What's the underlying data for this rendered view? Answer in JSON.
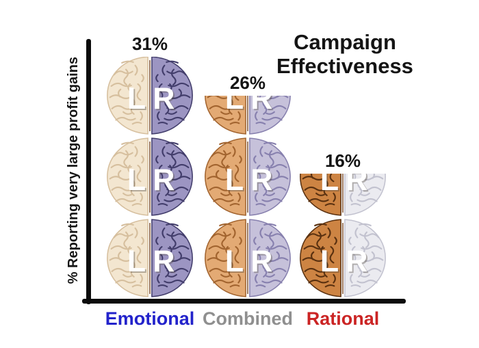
{
  "title": "Campaign Effectiveness",
  "y_axis_label": "% Reporting very large profit gains",
  "chart_data": {
    "type": "bar",
    "title": "Campaign Effectiveness",
    "ylabel": "% Reporting very large profit gains",
    "xlabel": "",
    "categories": [
      "Emotional",
      "Combined",
      "Rational"
    ],
    "values": [
      31,
      26,
      16
    ],
    "value_labels": [
      "31%",
      "26%",
      "16%"
    ],
    "ylim": [
      0,
      34
    ],
    "grid": false,
    "legend": false,
    "bar_glyph": "stacked split-brain illustrations, each brain divided into left (L) and right (R) hemispheres",
    "hemisphere_letters": [
      "L",
      "R"
    ],
    "category_label_colors": [
      "#2323cb",
      "#8f8f8f",
      "#cb2424"
    ],
    "axis_color": "#0b0b0b",
    "bar_colors": [
      {
        "left_fill": "#f3e6d0",
        "left_sulci": "#d6bf9e",
        "right_fill": "#9c95c2",
        "right_sulci": "#423d6b"
      },
      {
        "left_fill": "#e3aa74",
        "left_sulci": "#a2642f",
        "right_fill": "#c6c1da",
        "right_sulci": "#8780ae"
      },
      {
        "left_fill": "#cd8443",
        "left_sulci": "#5a3110",
        "right_fill": "#ebebf0",
        "right_sulci": "#c2c2cf"
      }
    ],
    "midline_color": "#7a4a28"
  }
}
